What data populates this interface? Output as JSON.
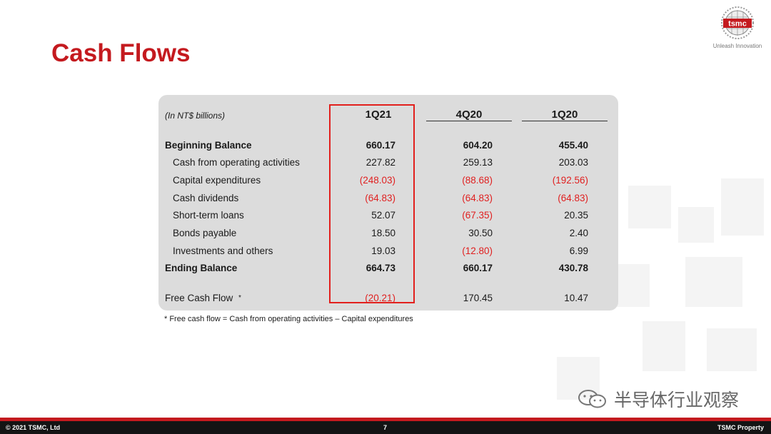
{
  "slide": {
    "title": "Cash Flows",
    "logo_text": "tsmc",
    "logo_tagline": "Unleash Innovation"
  },
  "table": {
    "unit_label": "(In NT$ billions)",
    "columns": [
      "1Q21",
      "4Q20",
      "1Q20"
    ],
    "highlighted_column": "1Q21",
    "rows": [
      {
        "label": "Beginning Balance",
        "values": [
          "660.17",
          "604.20",
          "455.40"
        ]
      },
      {
        "label": "Cash from operating activities",
        "values": [
          "227.82",
          "259.13",
          "203.03"
        ]
      },
      {
        "label": "Capital expenditures",
        "values": [
          "(248.03)",
          "(88.68)",
          "(192.56)"
        ]
      },
      {
        "label": "Cash dividends",
        "values": [
          "(64.83)",
          "(64.83)",
          "(64.83)"
        ]
      },
      {
        "label": "Short-term loans",
        "values": [
          "52.07",
          "(67.35)",
          "20.35"
        ]
      },
      {
        "label": "Bonds payable",
        "values": [
          "18.50",
          "30.50",
          "2.40"
        ]
      },
      {
        "label": "Investments and others",
        "values": [
          "19.03",
          "(12.80)",
          "6.99"
        ]
      },
      {
        "label": "Ending Balance",
        "values": [
          "664.73",
          "660.17",
          "430.78"
        ]
      },
      {
        "label": "Free Cash Flow",
        "label_suffix": "*",
        "values": [
          "(20.21)",
          "170.45",
          "10.47"
        ]
      }
    ],
    "negative_color": "#e02020",
    "highlight_color": "#e2201d"
  },
  "footnote": "* Free cash flow  = Cash from operating activities  – Capital expenditures",
  "watermark": "半导体行业观察",
  "footer": {
    "left": "© 2021 TSMC, Ltd",
    "page_number": "7",
    "right": "TSMC Property"
  },
  "colors": {
    "title_red": "#c41a1f",
    "footer_bg": "#141414"
  }
}
